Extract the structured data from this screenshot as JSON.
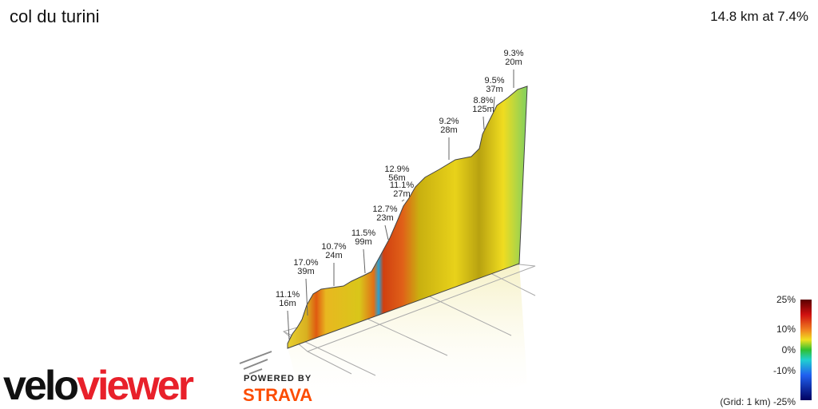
{
  "header": {
    "title": "col du turini",
    "summary": "14.8 km at 7.4%"
  },
  "annotations": [
    {
      "grade": "11.1%",
      "length": "16m"
    },
    {
      "grade": "17.0%",
      "length": "39m"
    },
    {
      "grade": "10.7%",
      "length": "24m"
    },
    {
      "grade": "11.5%",
      "length": "99m"
    },
    {
      "grade": "12.7%",
      "length": "23m"
    },
    {
      "grade": "12.9%",
      "length": "56m"
    },
    {
      "grade": "11.1%",
      "length": "27m"
    },
    {
      "grade": "9.2%",
      "length": "28m"
    },
    {
      "grade": "8.8%",
      "length": "125m"
    },
    {
      "grade": "9.5%",
      "length": "37m"
    },
    {
      "grade": "9.3%",
      "length": "20m"
    }
  ],
  "legend": {
    "labels": [
      "25%",
      "10%",
      "0%",
      "-10%",
      "(Grid: 1 km) -25%"
    ]
  },
  "branding": {
    "velo": "velo",
    "viewer": "viewer",
    "powered": "POWERED BY",
    "strava": "STRAVA"
  }
}
